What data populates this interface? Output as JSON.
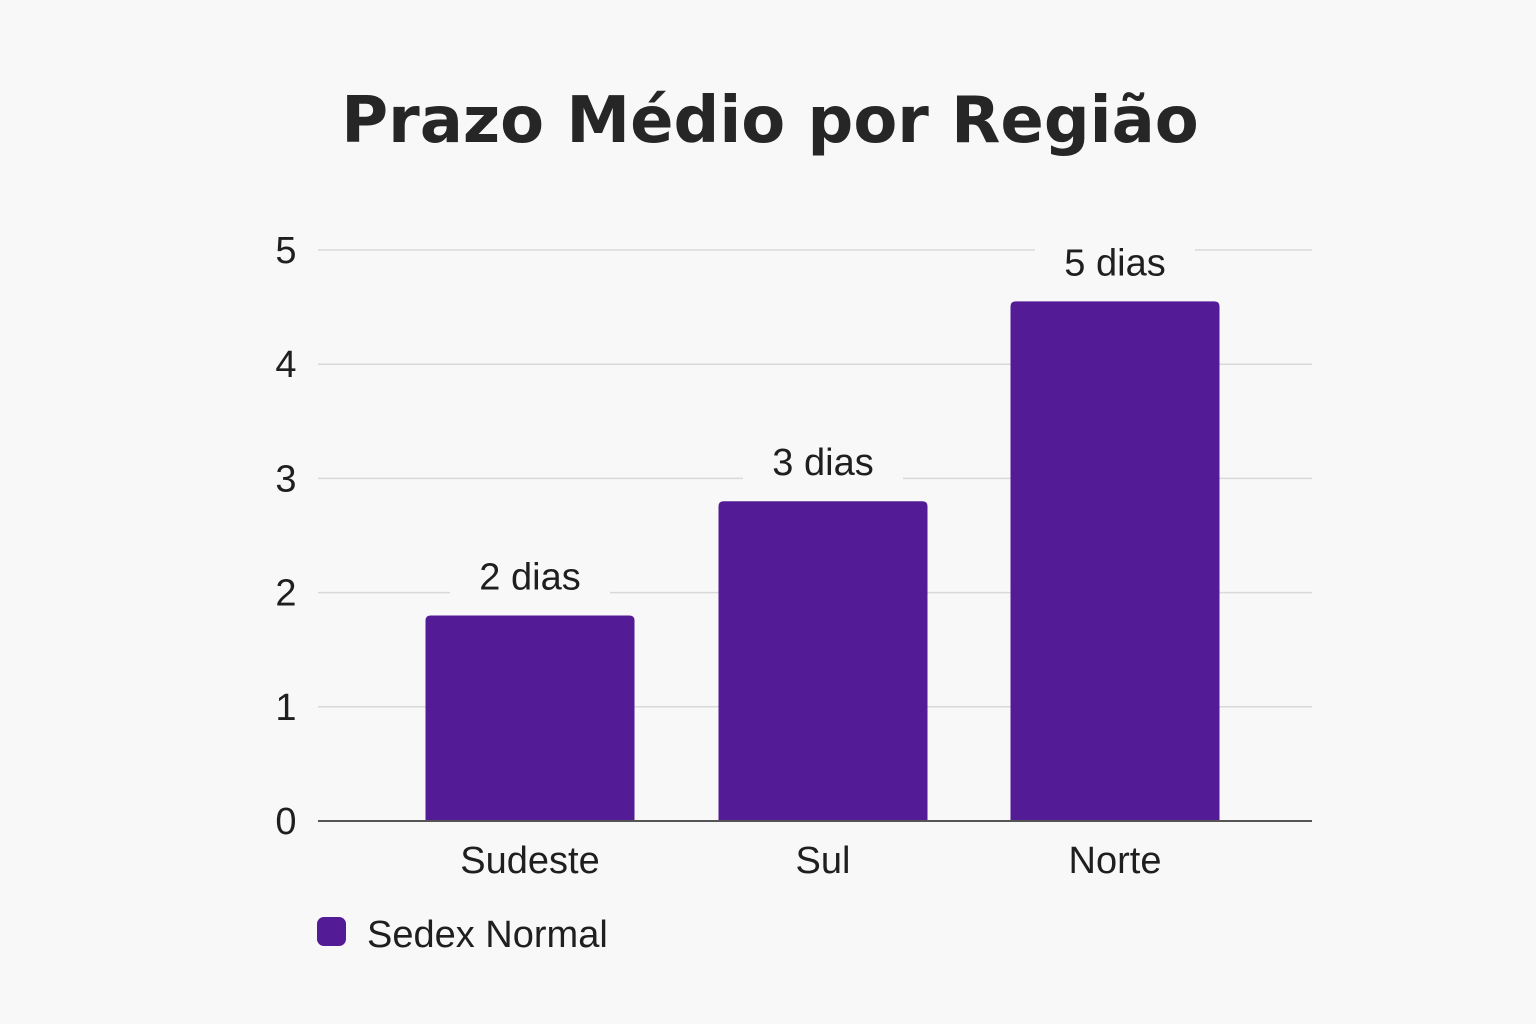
{
  "chart_data": {
    "type": "bar",
    "title": "Prazo Médio por Região",
    "categories": [
      "Sudeste",
      "Sul",
      "Norte"
    ],
    "series": [
      {
        "name": "Sedex Normal",
        "values": [
          1.8,
          2.8,
          4.55
        ],
        "data_labels": [
          "2 dias",
          "3 dias",
          "5 dias"
        ]
      }
    ],
    "y_ticks": [
      "0",
      "1",
      "2",
      "3",
      "4",
      "5"
    ],
    "ylim": [
      0,
      5
    ],
    "xlabel": "",
    "ylabel": "",
    "grid": true,
    "legend_position": "bottom-left",
    "colors": {
      "bar": "#531c96",
      "grid": "#d9d9d9",
      "axis": "#555555",
      "background": "#f8f8f8"
    }
  }
}
